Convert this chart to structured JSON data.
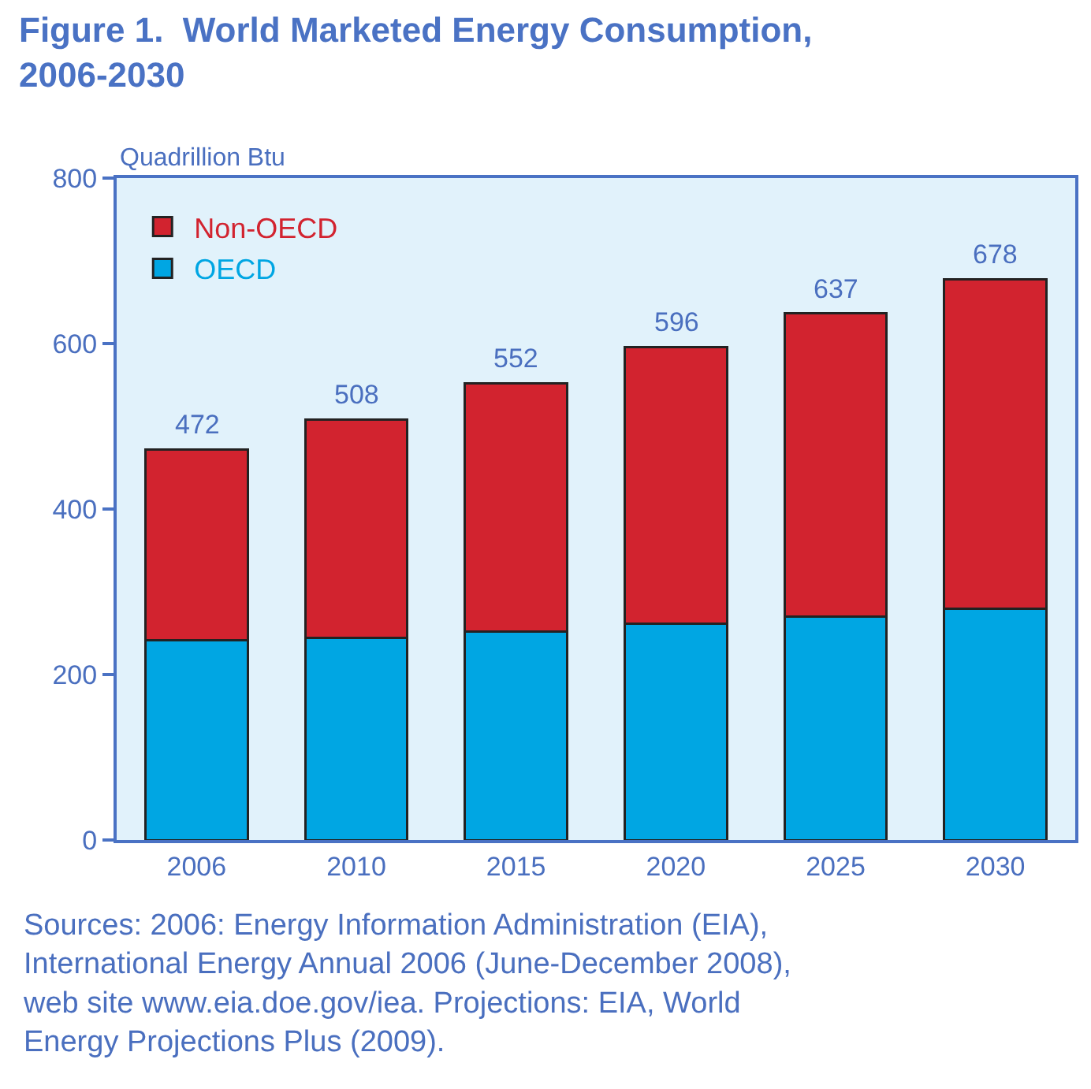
{
  "chart_data": {
    "type": "bar",
    "stacked": true,
    "title": "Figure 1.  World Marketed Energy Consumption,\n2006-2030",
    "ylabel": "Quadrillion Btu",
    "categories": [
      "2006",
      "2010",
      "2015",
      "2020",
      "2025",
      "2030"
    ],
    "series": [
      {
        "name": "OECD",
        "color": "#00a6e3",
        "values": [
          241,
          244,
          252,
          261,
          270,
          280
        ]
      },
      {
        "name": "Non-OECD",
        "color": "#d2232f",
        "values": [
          231,
          264,
          300,
          335,
          367,
          398
        ]
      }
    ],
    "totals": [
      "472",
      "508",
      "552",
      "596",
      "637",
      "678"
    ],
    "ylim": [
      0,
      800
    ],
    "yticks": [
      0,
      200,
      400,
      600,
      800
    ],
    "legend": "top left",
    "annotations": [
      "Sources: 2006: Energy Information Administration (EIA), International Energy Annual 2006 (June-December 2008), web site www.eia.doe.gov/iea. Projections: EIA, World Energy Projections Plus (2009)."
    ]
  }
}
